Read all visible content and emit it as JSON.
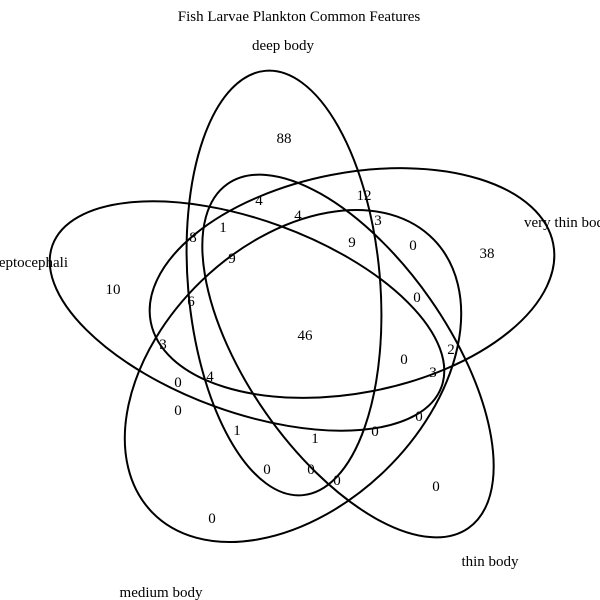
{
  "title": "Fish Larvae Plankton Common Features",
  "colors": {
    "stroke": "#000000",
    "text": "#000000",
    "background": "#ffffff"
  },
  "sets": [
    {
      "key": "deep",
      "label": "deep body"
    },
    {
      "key": "verythin",
      "label": "very thin body"
    },
    {
      "key": "thin",
      "label": "thin body"
    },
    {
      "key": "medium",
      "label": "medium body"
    },
    {
      "key": "lepto",
      "label": "leptocephali"
    }
  ],
  "region_counts": [
    {
      "sets": [
        "deep"
      ],
      "value": "88"
    },
    {
      "sets": [
        "verythin"
      ],
      "value": "38"
    },
    {
      "sets": [
        "lepto"
      ],
      "value": "10"
    },
    {
      "sets": [
        "medium"
      ],
      "value": "0"
    },
    {
      "sets": [
        "thin"
      ],
      "value": "0"
    },
    {
      "sets": [
        "deep",
        "verythin",
        "thin",
        "medium",
        "lepto"
      ],
      "value": "46"
    },
    {
      "sets": [
        "region-a"
      ],
      "value": "4"
    },
    {
      "sets": [
        "region-b"
      ],
      "value": "4"
    },
    {
      "sets": [
        "region-c"
      ],
      "value": "12"
    },
    {
      "sets": [
        "region-d"
      ],
      "value": "3"
    },
    {
      "sets": [
        "region-e"
      ],
      "value": "8"
    },
    {
      "sets": [
        "region-f"
      ],
      "value": "1"
    },
    {
      "sets": [
        "region-g"
      ],
      "value": "9"
    },
    {
      "sets": [
        "region-h"
      ],
      "value": "9"
    },
    {
      "sets": [
        "region-i"
      ],
      "value": "0"
    },
    {
      "sets": [
        "region-j"
      ],
      "value": "0"
    },
    {
      "sets": [
        "region-k"
      ],
      "value": "6"
    },
    {
      "sets": [
        "region-l"
      ],
      "value": "3"
    },
    {
      "sets": [
        "region-m"
      ],
      "value": "2"
    },
    {
      "sets": [
        "region-n"
      ],
      "value": "0"
    },
    {
      "sets": [
        "region-o"
      ],
      "value": "3"
    },
    {
      "sets": [
        "region-p"
      ],
      "value": "0"
    },
    {
      "sets": [
        "region-q"
      ],
      "value": "4"
    },
    {
      "sets": [
        "region-r"
      ],
      "value": "0"
    },
    {
      "sets": [
        "region-s"
      ],
      "value": "0"
    },
    {
      "sets": [
        "region-t"
      ],
      "value": "1"
    },
    {
      "sets": [
        "region-u"
      ],
      "value": "1"
    },
    {
      "sets": [
        "region-v"
      ],
      "value": "0"
    },
    {
      "sets": [
        "region-w"
      ],
      "value": "0"
    },
    {
      "sets": [
        "region-x"
      ],
      "value": "0"
    },
    {
      "sets": [
        "region-y"
      ],
      "value": "0"
    }
  ]
}
